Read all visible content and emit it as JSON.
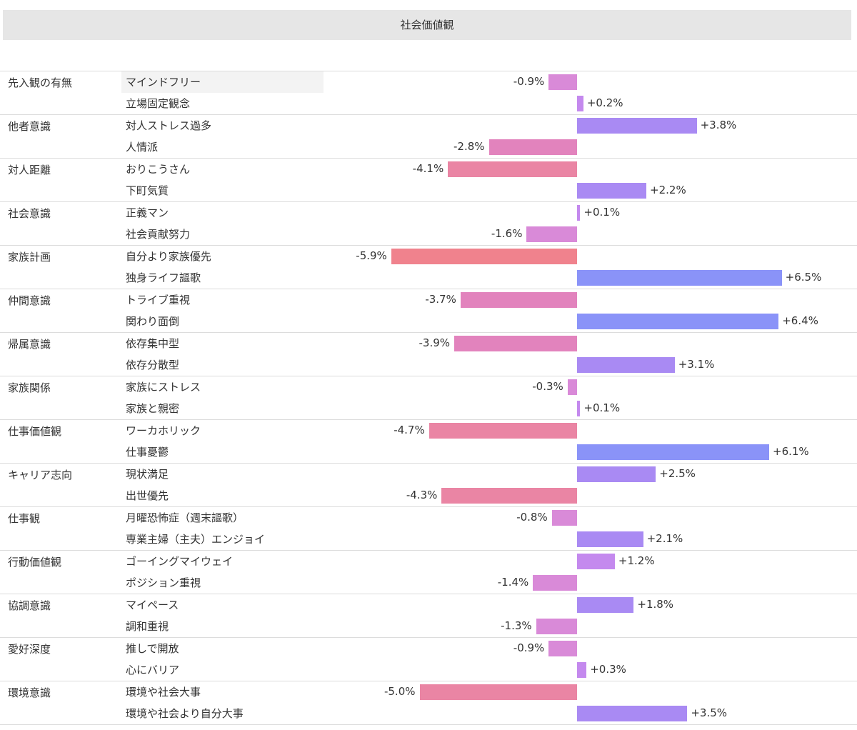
{
  "header": {
    "title": "社会価値観"
  },
  "colors": {
    "neg_small": "#d98ad8",
    "neg_mid": "#e283bd",
    "neg_large": "#ea85a4",
    "neg_max": "#f0828d",
    "pos_small": "#c489ee",
    "pos_mid": "#a98af3",
    "pos_large": "#8a93f8"
  },
  "chart_data": {
    "type": "bar",
    "orientation": "horizontal-diverging",
    "unit": "%",
    "groups": [
      {
        "group": "先入観の有無",
        "items": [
          {
            "label": "マインドフリー",
            "value": -0.9,
            "text": "-0.9%"
          },
          {
            "label": "立場固定観念",
            "value": 0.2,
            "text": "+0.2%"
          }
        ]
      },
      {
        "group": "他者意識",
        "items": [
          {
            "label": "対人ストレス過多",
            "value": 3.8,
            "text": "+3.8%"
          },
          {
            "label": "人情派",
            "value": -2.8,
            "text": "-2.8%"
          }
        ]
      },
      {
        "group": "対人距離",
        "items": [
          {
            "label": "おりこうさん",
            "value": -4.1,
            "text": "-4.1%"
          },
          {
            "label": "下町気質",
            "value": 2.2,
            "text": "+2.2%"
          }
        ]
      },
      {
        "group": "社会意識",
        "items": [
          {
            "label": "正義マン",
            "value": 0.1,
            "text": "+0.1%"
          },
          {
            "label": "社会貢献努力",
            "value": -1.6,
            "text": "-1.6%"
          }
        ]
      },
      {
        "group": "家族計画",
        "items": [
          {
            "label": "自分より家族優先",
            "value": -5.9,
            "text": "-5.9%"
          },
          {
            "label": "独身ライフ謳歌",
            "value": 6.5,
            "text": "+6.5%"
          }
        ]
      },
      {
        "group": "仲間意識",
        "items": [
          {
            "label": "トライブ重視",
            "value": -3.7,
            "text": "-3.7%"
          },
          {
            "label": "関わり面倒",
            "value": 6.4,
            "text": "+6.4%"
          }
        ]
      },
      {
        "group": "帰属意識",
        "items": [
          {
            "label": "依存集中型",
            "value": -3.9,
            "text": "-3.9%"
          },
          {
            "label": "依存分散型",
            "value": 3.1,
            "text": "+3.1%"
          }
        ]
      },
      {
        "group": "家族関係",
        "items": [
          {
            "label": "家族にストレス",
            "value": -0.3,
            "text": "-0.3%"
          },
          {
            "label": "家族と親密",
            "value": 0.1,
            "text": "+0.1%"
          }
        ]
      },
      {
        "group": "仕事価値観",
        "items": [
          {
            "label": "ワーカホリック",
            "value": -4.7,
            "text": "-4.7%"
          },
          {
            "label": "仕事憂鬱",
            "value": 6.1,
            "text": "+6.1%"
          }
        ]
      },
      {
        "group": "キャリア志向",
        "items": [
          {
            "label": "現状満足",
            "value": 2.5,
            "text": "+2.5%"
          },
          {
            "label": "出世優先",
            "value": -4.3,
            "text": "-4.3%"
          }
        ]
      },
      {
        "group": "仕事観",
        "items": [
          {
            "label": "月曜恐怖症（週末謳歌）",
            "value": -0.8,
            "text": "-0.8%"
          },
          {
            "label": "専業主婦（主夫）エンジョイ",
            "value": 2.1,
            "text": "+2.1%"
          }
        ]
      },
      {
        "group": "行動価値観",
        "items": [
          {
            "label": "ゴーイングマイウェイ",
            "value": 1.2,
            "text": "+1.2%"
          },
          {
            "label": "ポジション重視",
            "value": -1.4,
            "text": "-1.4%"
          }
        ]
      },
      {
        "group": "協調意識",
        "items": [
          {
            "label": "マイペース",
            "value": 1.8,
            "text": "+1.8%"
          },
          {
            "label": "調和重視",
            "value": -1.3,
            "text": "-1.3%"
          }
        ]
      },
      {
        "group": "愛好深度",
        "items": [
          {
            "label": "推しで開放",
            "value": -0.9,
            "text": "-0.9%"
          },
          {
            "label": "心にバリア",
            "value": 0.3,
            "text": "+0.3%"
          }
        ]
      },
      {
        "group": "環境意識",
        "items": [
          {
            "label": "環境や社会大事",
            "value": -5.0,
            "text": "-5.0%"
          },
          {
            "label": "環境や社会より自分大事",
            "value": 3.5,
            "text": "+3.5%"
          }
        ]
      }
    ]
  }
}
